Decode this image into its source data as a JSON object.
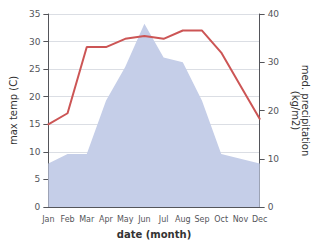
{
  "chart_data": {
    "type": "line",
    "categories": [
      "Jan",
      "Feb",
      "Mar",
      "Apr",
      "May",
      "Jun",
      "Jul",
      "Aug",
      "Sep",
      "Oct",
      "Nov",
      "Dec"
    ],
    "series": [
      {
        "type": "area",
        "axis": "y2",
        "color": "#c5cee8",
        "values": [
          9,
          11,
          11,
          22,
          29,
          38,
          31,
          30,
          22,
          11,
          10,
          9
        ]
      },
      {
        "type": "line",
        "color": "#cc5555",
        "values": [
          15,
          17,
          29,
          29,
          30.5,
          31,
          30.5,
          32,
          32,
          28,
          22,
          16
        ]
      }
    ],
    "xlabel": "date (month)",
    "ylabel": "max temp (C)",
    "y2label": "med. precipitation\n(kg/m2)",
    "ylim": [
      0,
      35
    ],
    "yticks": [
      0,
      5,
      10,
      15,
      20,
      25,
      30,
      35
    ],
    "y2lim": [
      0,
      40
    ],
    "y2ticks": [
      0,
      10,
      20,
      30,
      40
    ],
    "grid": true
  }
}
